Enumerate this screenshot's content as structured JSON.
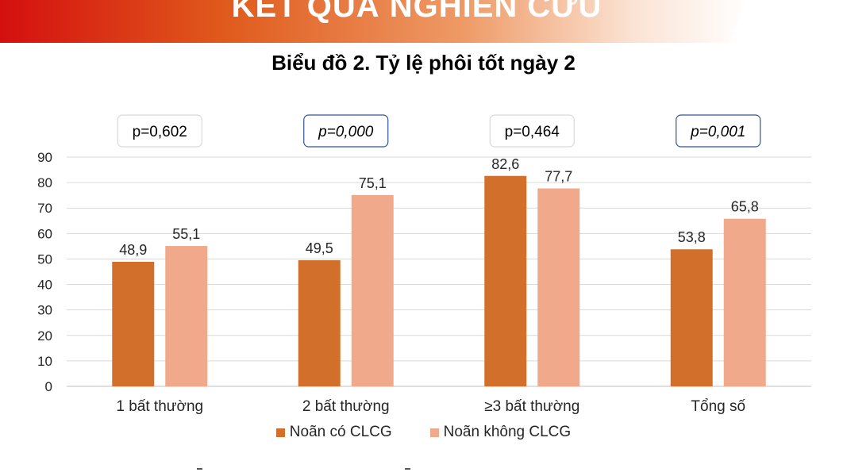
{
  "header": {
    "title": "KẾT QUẢ NGHIÊN CỨU"
  },
  "chart_data": {
    "type": "bar",
    "title": "Biểu đồ 2. Tỷ lệ phôi tốt ngày 2",
    "categories": [
      "1 bất thường",
      "2 bất thường",
      "≥3 bất thường",
      "Tổng số"
    ],
    "series": [
      {
        "name": "Noãn có CLCG",
        "values": [
          48.9,
          49.5,
          82.6,
          53.8
        ],
        "labels": [
          "48,9",
          "49,5",
          "82,6",
          "53,8"
        ],
        "color": "#d2702b"
      },
      {
        "name": "Noãn không CLCG",
        "values": [
          55.1,
          75.1,
          77.7,
          65.8
        ],
        "labels": [
          "55,1",
          "75,1",
          "77,7",
          "65,8"
        ],
        "color": "#f0a98a"
      }
    ],
    "ylim": [
      0,
      90
    ],
    "yticks": [
      "0",
      "10",
      "20",
      "30",
      "40",
      "50",
      "60",
      "70",
      "80",
      "90"
    ],
    "grid": true,
    "legend_position": "bottom",
    "annotations": [
      {
        "text": "p=0,602",
        "italic": false,
        "border_color": "#d9d9d9"
      },
      {
        "text": "p=0,000",
        "italic": true,
        "border_color": "#2f5597"
      },
      {
        "text": "p=0,464",
        "italic": false,
        "border_color": "#d9d9d9"
      },
      {
        "text": "p=0,001",
        "italic": true,
        "border_color": "#2f5597"
      }
    ]
  }
}
